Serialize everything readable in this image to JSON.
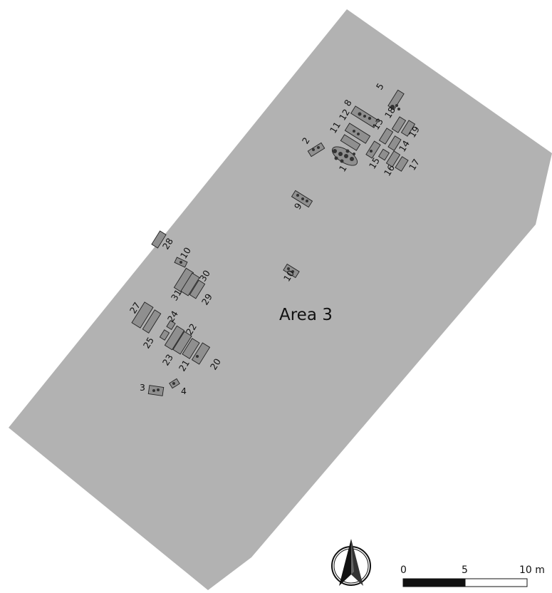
{
  "map": {
    "area_label": "Area 3",
    "colors": {
      "background": "#ffffff",
      "area_fill": "#b2b2b2",
      "feature_fill": "#8f8f8f",
      "outline": "#222222"
    },
    "feature_labels": [
      "1",
      "2",
      "3",
      "4",
      "5",
      "6",
      "8",
      "9",
      "10",
      "11",
      "12",
      "13",
      "14",
      "15",
      "16",
      "17",
      "18",
      "19",
      "20",
      "21",
      "22",
      "23",
      "24",
      "25",
      "27",
      "28",
      "29",
      "30",
      "31"
    ],
    "north_arrow": {
      "icon": "north-arrow-icon"
    },
    "scale_bar": {
      "ticks": [
        "0",
        "5",
        "10 m"
      ]
    }
  }
}
